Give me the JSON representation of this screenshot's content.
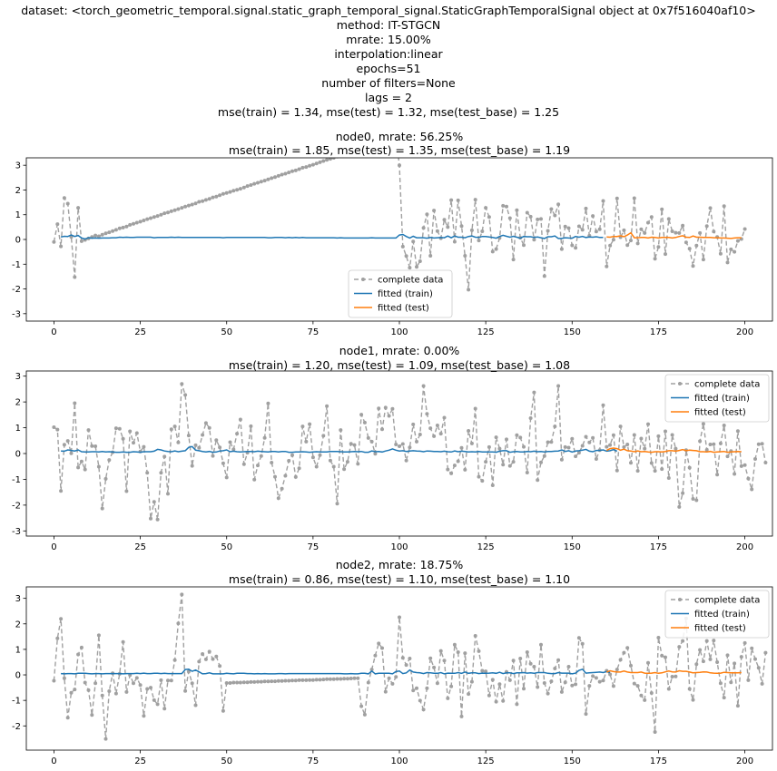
{
  "suptitle": [
    "dataset: <torch_geometric_temporal.signal.static_graph_temporal_signal.StaticGraphTemporalSignal object at 0x7f516040af10>",
    "method: IT-STGCN",
    "mrate: 15.00%",
    "interpolation:linear",
    "epochs=51",
    "number of filters=None",
    "lags = 2",
    "mse(train) = 1.34, mse(test) = 1.32, mse(test_base) = 1.25"
  ],
  "colors": {
    "complete": "#a0a0a0",
    "train": "#1f77b4",
    "test": "#ff7f0e",
    "axis": "#000000"
  },
  "legend": {
    "complete": "complete data",
    "train": "fitted (train)",
    "test": "fitted (test)"
  },
  "chart_data": [
    {
      "type": "line",
      "title": [
        "node0, mrate: 56.25%",
        "mse(train) = 1.85, mse(test) = 1.35, mse(test_base) = 1.19"
      ],
      "xlim": [
        -8,
        208
      ],
      "ylim": [
        -3.3,
        3.3
      ],
      "xticks": [
        0,
        25,
        50,
        75,
        100,
        125,
        150,
        175,
        200
      ],
      "yticks": [
        -3,
        -2,
        -1,
        0,
        1,
        2,
        3
      ],
      "legend_position": "lower-center",
      "x_start": 0,
      "complete": [
        -0.1,
        0.62,
        -0.28,
        1.68,
        1.45,
        0.1,
        -1.52,
        1.28,
        -0.07,
        -0.02,
        0.04,
        0.1,
        0.16,
        0.13,
        0.19,
        0.25,
        0.29,
        0.34,
        0.39,
        0.45,
        0.48,
        0.52,
        0.59,
        0.63,
        0.68,
        0.72,
        0.77,
        0.82,
        0.86,
        0.91,
        0.95,
        1.0,
        1.06,
        1.09,
        1.14,
        1.18,
        1.23,
        1.28,
        1.33,
        1.37,
        1.41,
        1.46,
        1.52,
        1.55,
        1.6,
        1.64,
        1.7,
        1.73,
        1.79,
        1.84,
        1.88,
        1.92,
        1.97,
        2.01,
        2.05,
        2.1,
        2.16,
        2.2,
        2.25,
        2.29,
        2.34,
        2.38,
        2.43,
        2.48,
        2.52,
        2.57,
        2.62,
        2.66,
        2.71,
        2.76,
        2.79,
        2.84,
        2.9,
        2.93,
        2.98,
        3.02,
        3.07,
        3.12,
        3.17,
        3.22,
        3.26,
        3.3,
        3.35,
        3.41,
        3.45,
        3.5,
        3.54,
        3.58,
        3.63,
        3.68,
        3.73,
        3.77,
        3.82,
        3.87,
        3.9,
        3.95,
        4.0,
        4.04,
        4.1,
        4.15,
        3.0,
        -0.29,
        -0.67,
        -1.14,
        -0.08,
        -1.11,
        -0.88,
        0.47,
        1.02,
        -0.66,
        1.17,
        0.34,
        0.05,
        0.8,
        0.5,
        1.59,
        -0.09,
        1.58,
        0.54,
        -0.66,
        -2.03,
        0.37,
        1.61,
        -0.04,
        0.33,
        1.28,
        0.91,
        -0.49,
        -0.39,
        0.06,
        1.36,
        1.33,
        0.86,
        -0.81,
        1.18,
        0.07,
        -0.23,
        1.08,
        0.92,
        -0.01,
        0.81,
        0.83,
        -1.48,
        0.35,
        1.23,
        0.97,
        1.42,
        -0.39,
        0.52,
        0.46,
        -0.24,
        -0.34,
        0.53,
        0.39,
        1.25,
        0.15,
        0.95,
        0.32,
        0.41,
        1.56,
        -1.09,
        -0.25,
        -0.01,
        1.66,
        0.09,
        0.37,
        -0.23,
        -0.04,
        1.67,
        -0.16,
        0.41,
        0.26,
        0.68,
        0.91,
        -0.78,
        -0.3,
        1.22,
        -0.59,
        0.83,
        0.33,
        0.27,
        0.26,
        0.56,
        -0.12,
        -0.37,
        -1.07,
        -0.25,
        0.26,
        -0.81,
        0.54,
        1.27,
        0.32,
        0.1,
        -0.58,
        1.35,
        -0.93,
        -0.4,
        -0.5,
        -0.06,
        0.02,
        0.42
      ],
      "train_x_start": 2,
      "train": [
        0.1,
        0.13,
        0.12,
        0.18,
        0.12,
        0.16,
        0.06,
        0.02,
        0.07,
        0.05,
        0.06,
        0.05,
        0.06,
        0.06,
        0.06,
        0.07,
        0.07,
        0.09,
        0.08,
        0.09,
        0.08,
        0.08,
        0.09,
        0.09,
        0.09,
        0.09,
        0.09,
        0.07,
        0.08,
        0.08,
        0.08,
        0.08,
        0.09,
        0.08,
        0.09,
        0.08,
        0.08,
        0.08,
        0.08,
        0.08,
        0.08,
        0.08,
        0.08,
        0.08,
        0.08,
        0.08,
        0.08,
        0.07,
        0.08,
        0.08,
        0.08,
        0.08,
        0.08,
        0.08,
        0.08,
        0.08,
        0.08,
        0.08,
        0.08,
        0.08,
        0.07,
        0.07,
        0.08,
        0.08,
        0.08,
        0.07,
        0.08,
        0.07,
        0.08,
        0.07,
        0.08,
        0.07,
        0.07,
        0.07,
        0.07,
        0.07,
        0.07,
        0.07,
        0.07,
        0.07,
        0.06,
        0.07,
        0.06,
        0.06,
        0.06,
        0.06,
        0.06,
        0.06,
        0.06,
        0.06,
        0.07,
        0.06,
        0.06,
        0.06,
        0.06,
        0.06,
        0.06,
        0.06,
        0.18,
        0.2,
        0.12,
        0.06,
        0.13,
        0.07,
        0.07,
        0.07,
        0.05,
        0.08,
        0.06,
        0.07,
        0.08,
        0.07,
        0.14,
        0.07,
        0.14,
        0.09,
        0.09,
        0.07,
        0.12,
        0.14,
        0.09,
        0.08,
        0.12,
        0.12,
        0.1,
        0.08,
        0.05,
        0.12,
        0.17,
        0.13,
        0.09,
        0.13,
        0.09,
        0.05,
        0.12,
        0.11,
        0.11,
        0.08,
        0.1,
        0.07,
        0.04,
        0.11,
        0.11,
        0.14,
        0.04,
        0.04,
        0.07,
        0.06,
        0.05,
        0.12,
        0.09,
        0.12,
        0.08,
        0.1,
        0.09,
        0.11,
        0.08,
        0.08
      ],
      "test_x_start": 160,
      "test": [
        0.1,
        0.09,
        0.12,
        0.12,
        0.15,
        0.11,
        0.18,
        0.27,
        0.07,
        0.07,
        0.08,
        0.08,
        0.06,
        0.09,
        0.08,
        0.06,
        0.08,
        0.08,
        0.08,
        0.06,
        0.08,
        0.12,
        0.15,
        0.09,
        0.08,
        0.14,
        0.09,
        0.09,
        0.08,
        0.08,
        0.08,
        0.07,
        0.07,
        0.06,
        0.06,
        0.05,
        0.04,
        0.06,
        0.07,
        0.07
      ]
    },
    {
      "type": "line",
      "title": [
        "node1, mrate: 0.00%",
        "mse(train) = 1.20, mse(test) = 1.09, mse(test_base) = 1.08"
      ],
      "xlim": [
        -8,
        208
      ],
      "ylim": [
        -3.2,
        3.2
      ],
      "xticks": [
        0,
        25,
        50,
        75,
        100,
        125,
        150,
        175,
        200
      ],
      "yticks": [
        -3,
        -2,
        -1,
        0,
        1,
        2,
        3
      ],
      "legend_position": "top-right",
      "x_start": 0,
      "complete": [
        1.02,
        0.93,
        -1.45,
        0.34,
        0.49,
        0.01,
        1.95,
        -0.54,
        -0.31,
        -0.62,
        0.91,
        0.29,
        0.28,
        -0.51,
        -2.13,
        -0.98,
        -0.25,
        0.05,
        0.98,
        0.96,
        0.57,
        -1.46,
        0.86,
        0.42,
        0.79,
        0.08,
        0.26,
        -0.75,
        -2.52,
        -1.87,
        -2.56,
        -0.75,
        -0.12,
        -1.56,
        0.94,
        1.05,
        0.43,
        2.7,
        2.27,
        0.7,
        -0.48,
        0.32,
        0.22,
        0.72,
        1.18,
        0.99,
        -0.09,
        0.52,
        0.24,
        -0.38,
        -0.93,
        0.44,
        0.16,
        0.77,
        1.32,
        -0.41,
        0.03,
        1.06,
        -1.01,
        -0.46,
        -0.1,
        0.61,
        1.94,
        -0.35,
        -0.9,
        -1.73,
        -1.36,
        -0.86,
        -0.28,
        -0.06,
        -0.91,
        -0.57,
        1.05,
        0.46,
        1.14,
        -0.15,
        -0.51,
        -0.06,
        0.69,
        1.84,
        -0.27,
        -0.51,
        -1.94,
        0.91,
        -0.61,
        -0.32,
        0.38,
        0.33,
        -0.4,
        1.51,
        1.2,
        0.6,
        0.46,
        -0.01,
        1.75,
        0.94,
        1.78,
        1.46,
        1.73,
        0.35,
        0.28,
        0.37,
        -0.27,
        0.24,
        1.13,
        0.46,
        0.74,
        2.62,
        1.54,
        0.98,
        0.67,
        1.09,
        0.77,
        1.39,
        -0.62,
        -0.77,
        -0.46,
        -0.3,
        0.22,
        -0.63,
        0.88,
        0.39,
        1.74,
        -0.9,
        -1.06,
        -0.32,
        0.25,
        -1.23,
        0.63,
        0.19,
        -0.43,
        0.55,
        -0.48,
        -0.32,
        0.71,
        0.62,
        0.26,
        -0.74,
        1.37,
        2.37,
        -1.03,
        -0.34,
        -0.1,
        0.44,
        0.45,
        1.05,
        2.62,
        -0.24,
        0.25,
        0.23,
        0.57,
        -0.11,
        0.03,
        0.3,
        0.65,
        0.43,
        0.61,
        -0.21,
        0.13,
        1.87,
        0.26,
        0.33,
        0.71,
        -0.66,
        1.05,
        0.25,
        0.35,
        -0.36,
        0.72,
        -0.67,
        0.58,
        0.19,
        1.14,
        -0.37,
        -0.67,
        0.67,
        -0.6,
        0.86,
        -0.95,
        0.72,
        0.19,
        -2.07,
        -1.54,
        0.13,
        -0.55,
        -1.76,
        -1.81,
        0.48,
        1.15,
        0.14,
        0.35,
        0.36,
        -0.82,
        0.39,
        1.09,
        -0.11,
        0.1,
        -0.79,
        0.87,
        -0.49,
        -0.45,
        -0.97,
        -1.39,
        -0.21,
        0.36,
        0.38,
        -0.35
      ],
      "train_x_start": 2,
      "train": [
        0.1,
        0.09,
        0.14,
        0.12,
        0.1,
        0.14,
        0.07,
        0.06,
        0.06,
        0.07,
        0.07,
        0.06,
        0.08,
        0.06,
        0.07,
        0.06,
        0.05,
        0.05,
        0.06,
        0.05,
        0.05,
        0.07,
        0.06,
        0.05,
        0.07,
        0.07,
        0.07,
        0.09,
        0.16,
        0.14,
        0.1,
        0.08,
        0.07,
        0.1,
        0.07,
        0.09,
        0.11,
        0.24,
        0.27,
        0.13,
        0.11,
        0.08,
        0.06,
        0.08,
        0.05,
        0.06,
        0.1,
        0.11,
        0.14,
        0.07,
        0.09,
        0.07,
        0.06,
        0.07,
        0.08,
        0.08,
        0.07,
        0.09,
        0.08,
        0.07,
        0.06,
        0.08,
        0.08,
        0.06,
        0.08,
        0.08,
        0.05,
        0.05,
        0.06,
        0.06,
        0.07,
        0.06,
        0.05,
        0.06,
        0.07,
        0.06,
        0.06,
        0.06,
        0.08,
        0.08,
        0.08,
        0.07,
        0.06,
        0.06,
        0.07,
        0.08,
        0.07,
        0.08,
        0.05,
        0.05,
        0.1,
        0.07,
        0.08,
        0.06,
        0.1,
        0.13,
        0.18,
        0.13,
        0.1,
        0.11,
        0.08,
        0.1,
        0.11,
        0.1,
        0.09,
        0.07,
        0.1,
        0.09,
        0.08,
        0.08,
        0.07,
        0.09,
        0.07,
        0.06,
        0.1,
        0.07,
        0.09,
        0.08,
        0.06,
        0.07,
        0.06,
        0.08,
        0.06,
        0.06,
        0.06,
        0.06,
        0.05,
        0.09,
        0.11,
        0.11,
        0.05,
        0.07,
        0.08,
        0.06,
        0.06,
        0.08,
        0.07,
        0.09,
        0.07,
        0.08,
        0.06,
        0.08,
        0.08,
        0.09,
        0.1,
        0.14,
        0.08,
        0.11,
        0.06,
        0.1,
        0.11,
        0.13,
        0.16,
        0.09,
        0.07,
        0.12,
        0.12,
        0.14,
        0.09,
        0.11,
        0.15,
        0.09
      ],
      "test_x_start": 160,
      "test": [
        0.12,
        0.19,
        0.21,
        0.19,
        0.13,
        0.17,
        0.11,
        0.1,
        0.07,
        0.1,
        0.07,
        0.08,
        0.06,
        0.05,
        0.07,
        0.07,
        0.06,
        0.08,
        0.11,
        0.11,
        0.09,
        0.12,
        0.15,
        0.11,
        0.13,
        0.12,
        0.11,
        0.07,
        0.07,
        0.06,
        0.08,
        0.05,
        0.06,
        0.07,
        0.08,
        0.05,
        0.06,
        0.07,
        0.08,
        0.07
      ]
    },
    {
      "type": "line",
      "title": [
        "node2, mrate: 18.75%",
        "mse(train) = 0.86, mse(test) = 1.10, mse(test_base) = 1.10"
      ],
      "xlim": [
        -8,
        208
      ],
      "ylim": [
        -2.95,
        3.45
      ],
      "xticks": [
        0,
        25,
        50,
        75,
        100,
        125,
        150,
        175,
        200
      ],
      "yticks": [
        -2,
        -1,
        0,
        1,
        2,
        3
      ],
      "legend_position": "top-right",
      "x_start": 0,
      "complete": [
        -0.23,
        1.43,
        2.2,
        -0.13,
        -1.68,
        -0.7,
        -0.57,
        0.8,
        1.07,
        -0.3,
        -0.6,
        -1.57,
        -0.33,
        1.55,
        -0.81,
        -2.51,
        -0.64,
        0.06,
        -0.73,
        0.04,
        1.29,
        -0.67,
        -0.01,
        -0.33,
        -0.12,
        -0.4,
        -1.61,
        -0.55,
        -0.5,
        -0.99,
        -1.15,
        -0.21,
        -1.32,
        -0.22,
        -0.22,
        0.58,
        2.02,
        3.15,
        -0.63,
        0.13,
        -0.33,
        -1.19,
        0.52,
        0.82,
        0.61,
        0.91,
        0.62,
        0.72,
        0.35,
        -1.41,
        -0.32,
        -0.32,
        -0.3,
        -0.3,
        -0.3,
        -0.29,
        -0.29,
        -0.28,
        -0.28,
        -0.27,
        -0.27,
        -0.26,
        -0.26,
        -0.25,
        -0.25,
        -0.24,
        -0.24,
        -0.23,
        -0.23,
        -0.22,
        -0.22,
        -0.21,
        -0.21,
        -0.21,
        -0.2,
        -0.2,
        -0.19,
        -0.19,
        -0.18,
        -0.17,
        -0.17,
        -0.17,
        -0.16,
        -0.16,
        -0.15,
        -0.15,
        -0.14,
        -0.13,
        -0.13,
        -1.23,
        -1.56,
        -0.3,
        0.21,
        0.76,
        1.23,
        1.05,
        -0.66,
        -0.13,
        -0.35,
        -0.08,
        2.26,
        0.67,
        0.39,
        0.64,
        -0.61,
        -0.52,
        -1.01,
        -1.36,
        -0.52,
        0.65,
        0.29,
        -0.33,
        0.94,
        0.56,
        -0.92,
        -0.45,
        1.18,
        0.89,
        -1.63,
        0.85,
        -0.75,
        -0.27,
        1.53,
        0.93,
        0.16,
        0.14,
        -0.81,
        -0.19,
        -1.05,
        -0.36,
        -1.02,
        0.12,
        -0.21,
        0.56,
        -1.15,
        0.64,
        -0.54,
        0.89,
        0.44,
        0.32,
        -0.48,
        1.18,
        -0.32,
        -0.73,
        -0.25,
        0.25,
        0.58,
        -0.67,
        -0.29,
        0.32,
        -0.42,
        -0.37,
        1.45,
        1.22,
        -1.53,
        -0.43,
        -0.05,
        -0.12,
        -0.27,
        -0.22,
        0.16,
        0.02,
        -0.44,
        0.21,
        0.59,
        0.87,
        1.06,
        0.36,
        -0.34,
        -0.43,
        -0.81,
        -0.99,
        0.47,
        -0.71,
        -2.24,
        1.46,
        0.75,
        0.69,
        -0.55,
        -0.07,
        -0.06,
        1.1,
        1.33,
        2.21,
        -0.55,
        -0.98,
        0.42,
        0.98,
        0.53,
        1.33,
        0.61,
        1.35,
        0.5,
        -0.33,
        -0.89,
        0.77,
        -0.29,
        0.45,
        -1.21,
        0.71,
        1.25,
        -0.21,
        1.04,
        0.62,
        0.28,
        -0.35,
        0.87
      ],
      "train_x_start": 2,
      "train": [
        0.05,
        0.04,
        0.05,
        0.05,
        0.04,
        0.06,
        0.06,
        0.06,
        0.05,
        0.04,
        0.05,
        0.05,
        0.04,
        0.05,
        0.05,
        0.05,
        0.05,
        0.05,
        0.04,
        0.05,
        0.05,
        0.05,
        0.06,
        0.05,
        0.07,
        0.05,
        0.05,
        0.06,
        0.06,
        0.05,
        0.06,
        0.05,
        0.05,
        0.05,
        0.05,
        0.05,
        0.21,
        0.22,
        0.14,
        0.19,
        0.12,
        0.04,
        0.05,
        0.08,
        0.04,
        0.04,
        0.04,
        0.04,
        0.06,
        0.05,
        0.04,
        0.06,
        0.06,
        0.06,
        0.05,
        0.05,
        0.04,
        0.05,
        0.04,
        0.05,
        0.04,
        0.04,
        0.04,
        0.05,
        0.05,
        0.04,
        0.05,
        0.05,
        0.05,
        0.05,
        0.05,
        0.05,
        0.05,
        0.05,
        0.05,
        0.05,
        0.05,
        0.05,
        0.05,
        0.05,
        0.05,
        0.05,
        0.04,
        0.04,
        0.05,
        0.04,
        0.04,
        0.06,
        0.06,
        0.04,
        0.15,
        0.04,
        0.06,
        0.06,
        0.06,
        0.06,
        0.04,
        0.13,
        0.15,
        0.05,
        0.08,
        0.19,
        0.11,
        0.09,
        0.08,
        0.05,
        0.09,
        0.08,
        0.06,
        0.06,
        0.09,
        0.04,
        0.07,
        0.06,
        0.06,
        0.09,
        0.06,
        0.11,
        0.06,
        0.08,
        0.08,
        0.05,
        0.07,
        0.06,
        0.07,
        0.08,
        0.06,
        0.1,
        0.05,
        0.08,
        0.08,
        0.05,
        0.08,
        0.08,
        0.09,
        0.07,
        0.08,
        0.06,
        0.09,
        0.09,
        0.09,
        0.06,
        0.05,
        0.05,
        0.09,
        0.07,
        0.07,
        0.07,
        0.04,
        0.07,
        0.18,
        0.22,
        0.07,
        0.08,
        0.09,
        0.1,
        0.11,
        0.09,
        0.13,
        0.09
      ],
      "test_x_start": 160,
      "test": [
        0.11,
        0.16,
        0.13,
        0.11,
        0.11,
        0.15,
        0.11,
        0.09,
        0.09,
        0.09,
        0.11,
        0.07,
        0.06,
        0.07,
        0.09,
        0.06,
        0.08,
        0.12,
        0.15,
        0.12,
        0.11,
        0.16,
        0.14,
        0.14,
        0.11,
        0.08,
        0.09,
        0.1,
        0.12,
        0.11,
        0.08,
        0.07,
        0.06,
        0.07,
        0.1,
        0.09,
        0.08,
        0.08,
        0.08,
        0.09
      ]
    }
  ]
}
